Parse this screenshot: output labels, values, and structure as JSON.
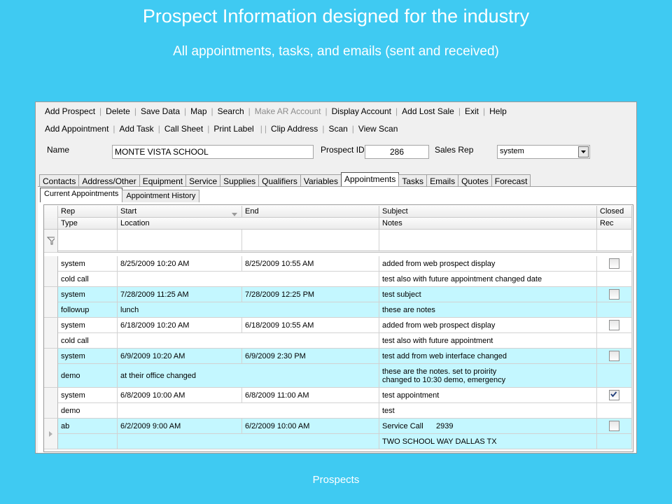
{
  "slide": {
    "title": "Prospect Information designed for the industry",
    "subtitle": "All appointments, tasks, and emails (sent and received)",
    "footer": "Prospects"
  },
  "toolbar1": [
    {
      "label": "Add Prospect",
      "enabled": true
    },
    {
      "label": "Delete",
      "enabled": true
    },
    {
      "label": "Save Data",
      "enabled": true
    },
    {
      "label": "Map",
      "enabled": true
    },
    {
      "label": "Search",
      "enabled": true
    },
    {
      "label": "Make AR Account",
      "enabled": false
    },
    {
      "label": "Display Account",
      "enabled": true
    },
    {
      "label": "Add Lost Sale",
      "enabled": true
    },
    {
      "label": "Exit",
      "enabled": true
    },
    {
      "label": "Help",
      "enabled": true
    }
  ],
  "toolbar2": [
    [
      "Add Appointment",
      "Add Task",
      "Call Sheet",
      "Print Label"
    ],
    [
      "Clip Address",
      "Scan",
      "View Scan"
    ]
  ],
  "form": {
    "name_label": "Name",
    "name": "MONTE VISTA SCHOOL",
    "prospect_id_label": "Prospect ID",
    "prospect_id": "286",
    "sales_rep_label": "Sales Rep",
    "sales_rep": "system"
  },
  "tabs": [
    {
      "label": "Contacts",
      "selected": false
    },
    {
      "label": "Address/Other",
      "selected": false
    },
    {
      "label": "Equipment",
      "selected": false
    },
    {
      "label": "Service",
      "selected": false
    },
    {
      "label": "Supplies",
      "selected": false
    },
    {
      "label": "Qualifiers",
      "selected": false
    },
    {
      "label": "Variables",
      "selected": false
    },
    {
      "label": "Appointments",
      "selected": true
    },
    {
      "label": "Tasks",
      "selected": false
    },
    {
      "label": "Emails",
      "selected": false
    },
    {
      "label": "Quotes",
      "selected": false
    },
    {
      "label": "Forecast",
      "selected": false
    }
  ],
  "subtabs": [
    {
      "label": "Current Appointments",
      "selected": true
    },
    {
      "label": "Appointment History",
      "selected": false
    }
  ],
  "grid": {
    "header_top": [
      "Rep",
      "Start",
      "End",
      "Subject",
      "Closed"
    ],
    "header_bottom": [
      "Type",
      "Location",
      "Notes",
      "Rec"
    ],
    "records": [
      {
        "rep": "system",
        "start": "8/25/2009 10:20 AM",
        "end": "8/25/2009 10:55 AM",
        "subject": "added from web prospect display",
        "closed": false,
        "type": "cold call",
        "notes": "test also with future appointment changed date"
      },
      {
        "rep": "system",
        "start": "7/28/2009 11:25 AM",
        "end": "7/28/2009 12:25 PM",
        "subject": "test subject",
        "closed": false,
        "type": "followup",
        "location": "lunch",
        "notes": "these are notes"
      },
      {
        "rep": "system",
        "start": "6/18/2009 10:20 AM",
        "end": "6/18/2009 10:55 AM",
        "subject": "added from web prospect display",
        "closed": false,
        "type": "cold call",
        "notes": "test also with future appointment"
      },
      {
        "rep": "system",
        "start": "6/9/2009 10:20 AM",
        "end": "6/9/2009 2:30 PM",
        "subject": "test add from web interface changed",
        "closed": false,
        "type": "demo",
        "location": "at their office changed",
        "notes": "these are the notes.  set to proirity\nchanged to 10:30 demo, emergency"
      },
      {
        "rep": "system",
        "start": "6/8/2009 10:00 AM",
        "end": "6/8/2009 11:00 AM",
        "subject": "test appointment",
        "closed": true,
        "type": "demo",
        "notes": "test"
      },
      {
        "rep": "ab",
        "start": "6/2/2009 9:00 AM",
        "end": "6/2/2009 10:00 AM",
        "subject": "Service Call      2939",
        "closed": false,
        "type": "",
        "notes": "TWO SCHOOL WAY DALLAS TX",
        "current": true
      }
    ]
  }
}
